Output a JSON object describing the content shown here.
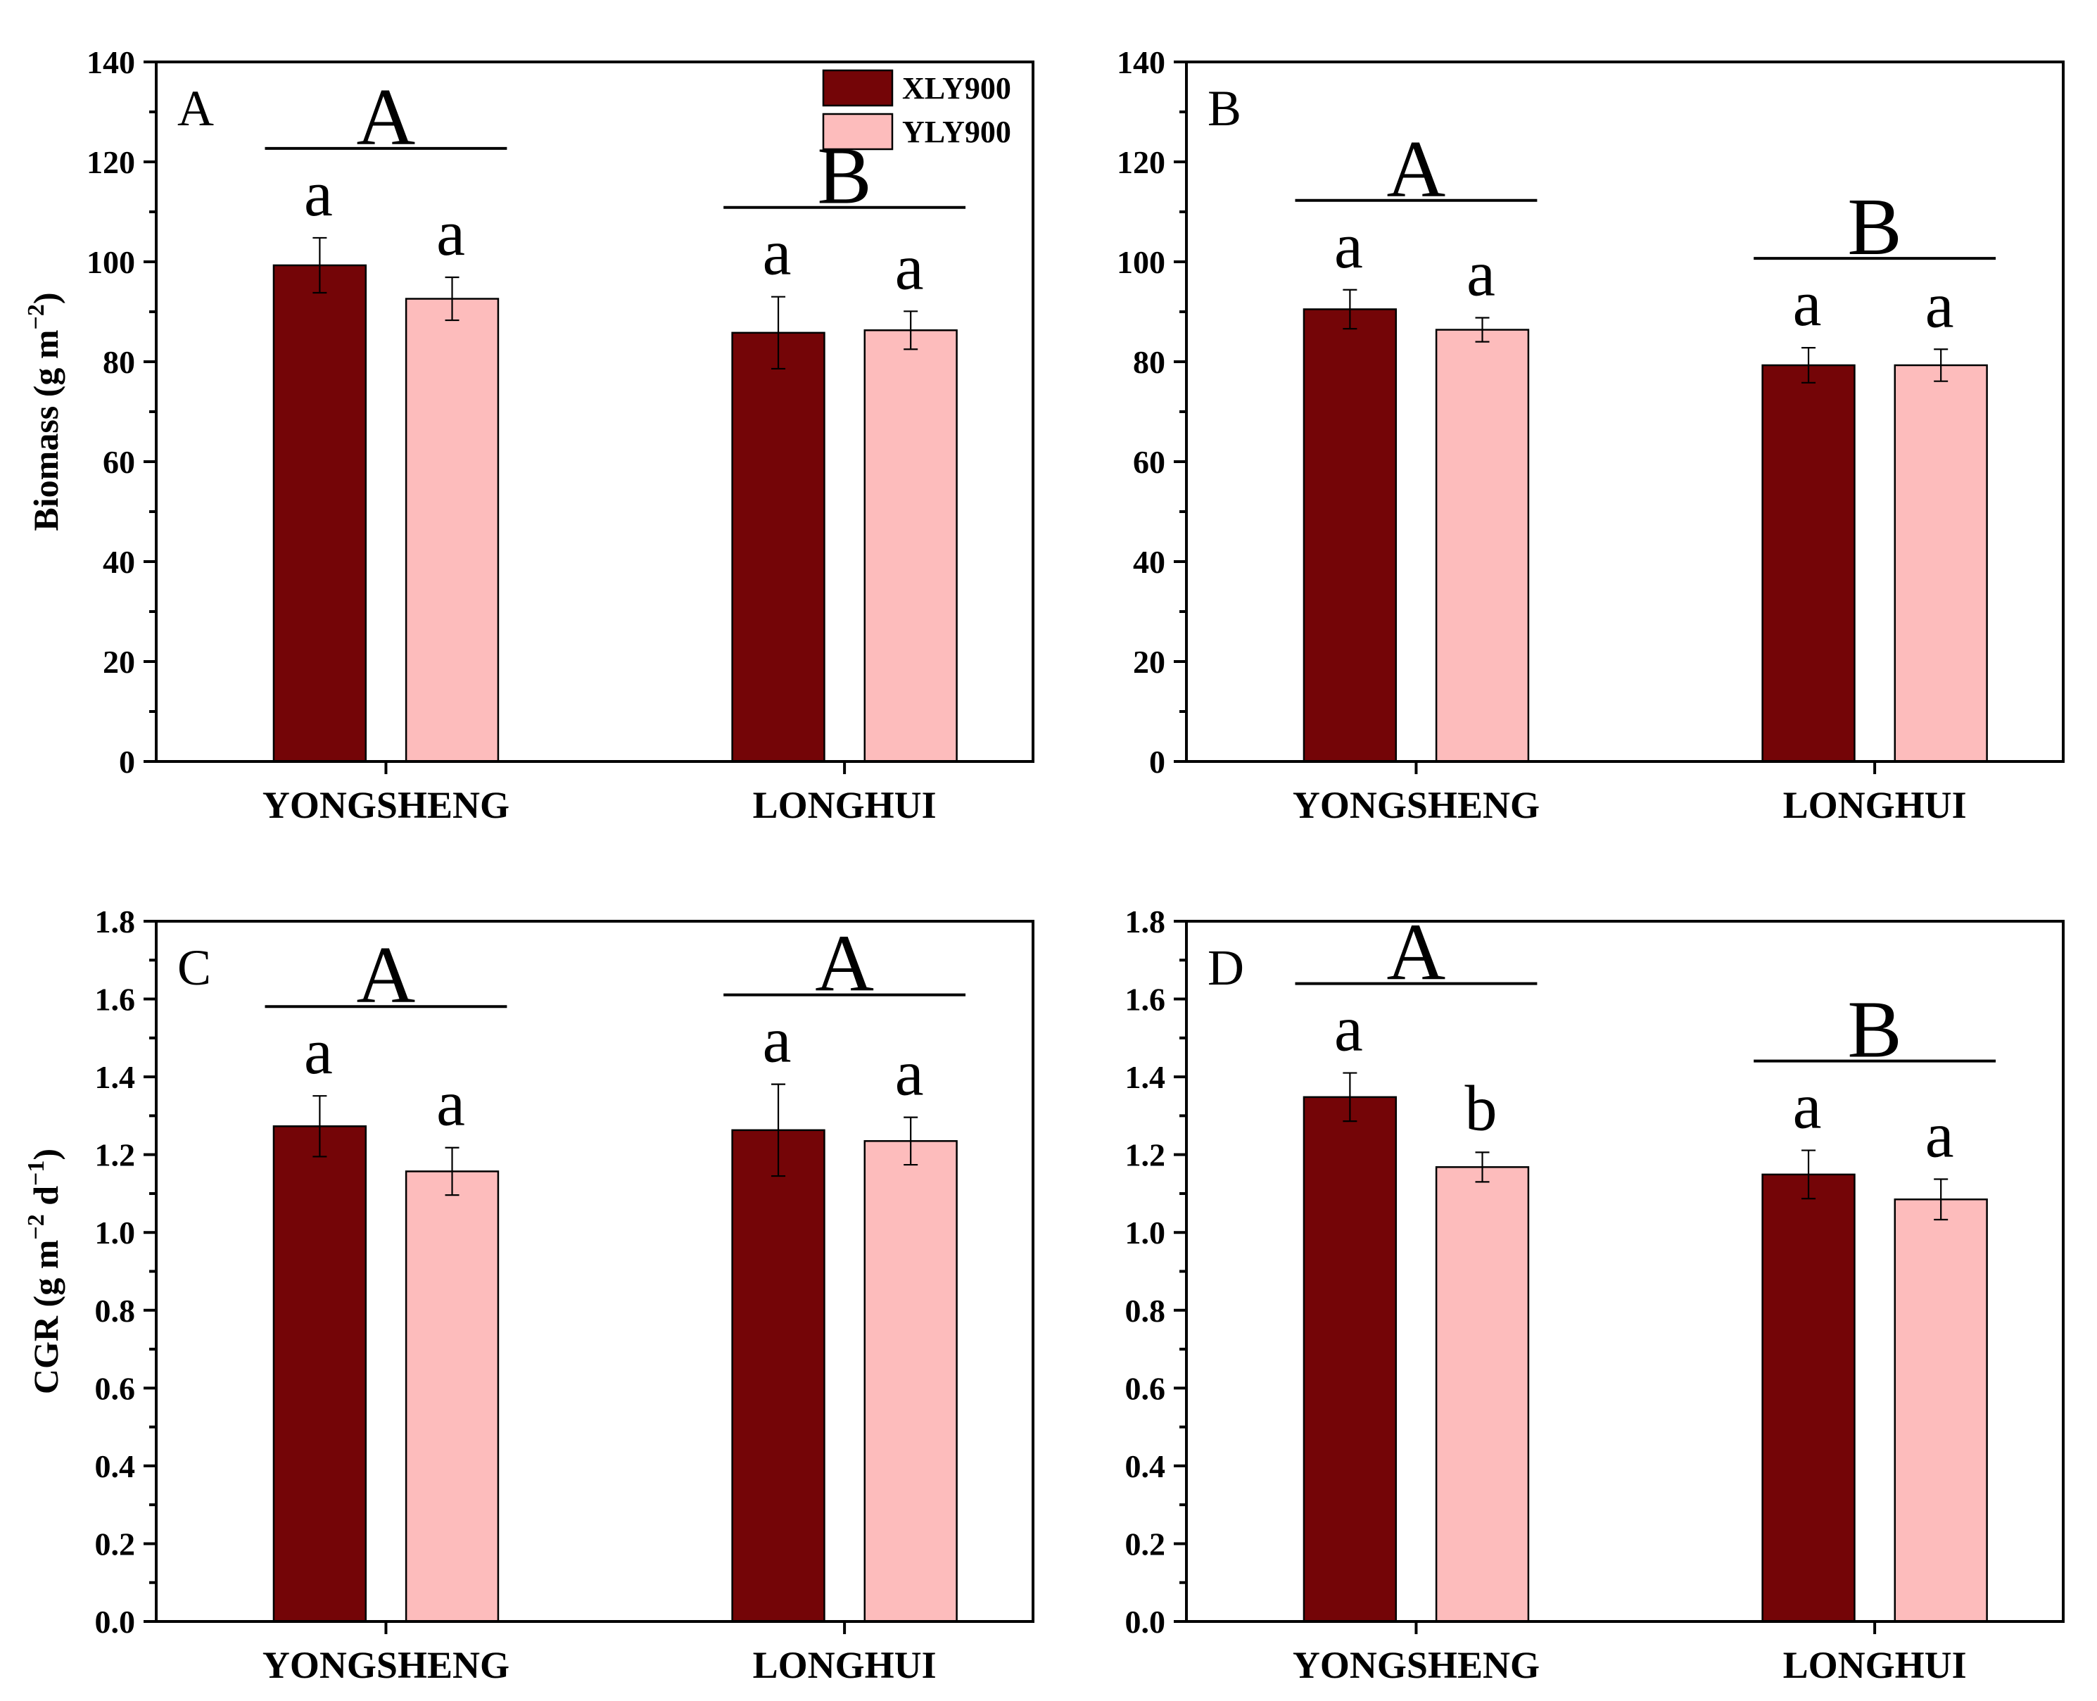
{
  "chart_data": [
    {
      "panel": "A",
      "type": "bar",
      "categories": [
        "YONGSHENG",
        "LONGHUI"
      ],
      "series": [
        {
          "name": "XLY900",
          "color": "#740507",
          "values": [
            99.3,
            85.8
          ],
          "errors": [
            5.5,
            7.2
          ],
          "letters": [
            "a",
            "a"
          ]
        },
        {
          "name": "YLY900",
          "color": "#fdbcbc",
          "values": [
            92.6,
            86.3
          ],
          "errors": [
            4.3,
            3.8
          ],
          "letters": [
            "a",
            "a"
          ]
        }
      ],
      "group_letters": [
        "A",
        "B"
      ],
      "ylim": [
        0,
        140
      ],
      "yticks": [
        "0",
        "20",
        "40",
        "60",
        "80",
        "100",
        "120",
        "140"
      ],
      "ylabel": "Biomass (g m",
      "ylabel_sup": "−2",
      "ylabel_end": ")",
      "legend": true
    },
    {
      "panel": "B",
      "type": "bar",
      "categories": [
        "YONGSHENG",
        "LONGHUI"
      ],
      "series": [
        {
          "name": "XLY900",
          "color": "#740507",
          "values": [
            90.5,
            79.3
          ],
          "errors": [
            3.9,
            3.5
          ],
          "letters": [
            "a",
            "a"
          ]
        },
        {
          "name": "YLY900",
          "color": "#fdbcbc",
          "values": [
            86.4,
            79.3
          ],
          "errors": [
            2.4,
            3.2
          ],
          "letters": [
            "a",
            "a"
          ]
        }
      ],
      "group_letters": [
        "A",
        "B"
      ],
      "ylim": [
        0,
        140
      ],
      "yticks": [
        "0",
        "20",
        "40",
        "60",
        "80",
        "100",
        "120",
        "140"
      ],
      "legend": false
    },
    {
      "panel": "C",
      "type": "bar",
      "categories": [
        "YONGSHENG",
        "LONGHUI"
      ],
      "series": [
        {
          "name": "XLY900",
          "color": "#740507",
          "values": [
            1.273,
            1.263
          ],
          "errors": [
            0.078,
            0.118
          ],
          "letters": [
            "a",
            "a"
          ]
        },
        {
          "name": "YLY900",
          "color": "#fdbcbc",
          "values": [
            1.157,
            1.235
          ],
          "errors": [
            0.061,
            0.061
          ],
          "letters": [
            "a",
            "a"
          ]
        }
      ],
      "group_letters": [
        "A",
        "A"
      ],
      "ylim": [
        0,
        1.8
      ],
      "yticks": [
        "0.0",
        "0.2",
        "0.4",
        "0.6",
        "0.8",
        "1.0",
        "1.2",
        "1.4",
        "1.6",
        "1.8"
      ],
      "ylabel": "CGR (g m",
      "ylabel_sup": "−2",
      "ylabel_mid": " d",
      "ylabel_sup2": "−1",
      "ylabel_end": ")",
      "legend": false
    },
    {
      "panel": "D",
      "type": "bar",
      "categories": [
        "YONGSHENG",
        "LONGHUI"
      ],
      "series": [
        {
          "name": "XLY900",
          "color": "#740507",
          "values": [
            1.348,
            1.149
          ],
          "errors": [
            0.062,
            0.062
          ],
          "letters": [
            "a",
            "a"
          ]
        },
        {
          "name": "YLY900",
          "color": "#fdbcbc",
          "values": [
            1.168,
            1.085
          ],
          "errors": [
            0.038,
            0.052
          ],
          "letters": [
            "b",
            "a"
          ]
        }
      ],
      "group_letters": [
        "A",
        "B"
      ],
      "ylim": [
        0,
        1.8
      ],
      "yticks": [
        "0.0",
        "0.2",
        "0.4",
        "0.6",
        "0.8",
        "1.0",
        "1.2",
        "1.4",
        "1.6",
        "1.8"
      ],
      "legend": false
    }
  ]
}
